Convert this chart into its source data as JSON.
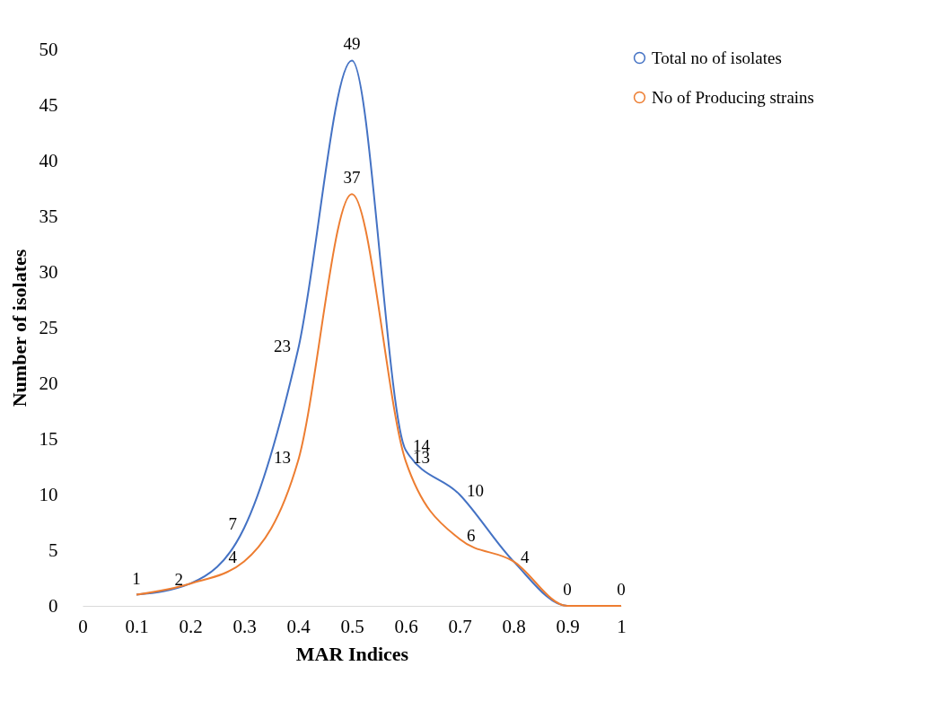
{
  "chart_data": {
    "type": "line",
    "xlabel": "MAR Indices",
    "ylabel": "Number of isolates",
    "x": [
      0.1,
      0.2,
      0.3,
      0.4,
      0.5,
      0.6,
      0.7,
      0.8,
      0.9,
      1
    ],
    "series": [
      {
        "name": "Total no of isolates",
        "color": "#4472c4",
        "values": [
          1,
          2,
          7,
          23,
          49,
          14,
          10,
          4,
          0,
          0
        ],
        "value_labels": [
          "1",
          "2",
          "7",
          "23",
          "49",
          "14",
          "10",
          "4",
          "0",
          "0"
        ]
      },
      {
        "name": "No of Producing strains",
        "color": "#ed7d31",
        "values": [
          1,
          2,
          4,
          13,
          37,
          13,
          6,
          4,
          0,
          0
        ],
        "value_labels": [
          null,
          null,
          "4",
          "13",
          "37",
          "13",
          "6",
          null,
          null,
          null
        ]
      }
    ],
    "xlim": [
      0,
      1
    ],
    "xticks": [
      0,
      0.1,
      0.2,
      0.3,
      0.4,
      0.5,
      0.6,
      0.7,
      0.8,
      0.9,
      1
    ],
    "ylim": [
      0,
      50
    ],
    "yticks": [
      0,
      5,
      10,
      15,
      20,
      25,
      30,
      35,
      40,
      45,
      50
    ],
    "grid": false,
    "legend": "right",
    "marker": "none",
    "line_style": "solid"
  }
}
